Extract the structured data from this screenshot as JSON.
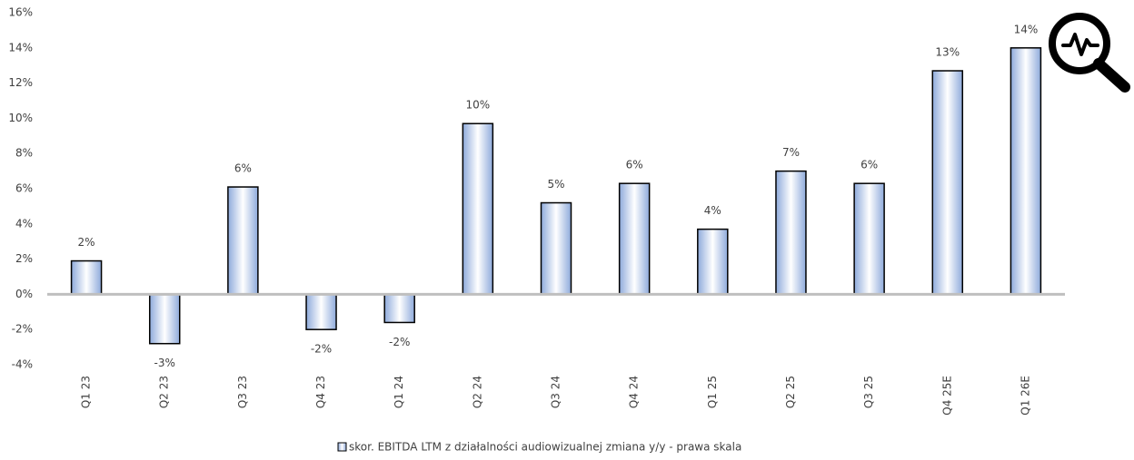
{
  "chart_data": {
    "type": "bar",
    "categories": [
      "Q1 23",
      "Q2 23",
      "Q3 23",
      "Q4 23",
      "Q1 24",
      "Q2 24",
      "Q3 24",
      "Q4 24",
      "Q1 25",
      "Q2 25",
      "Q3 25",
      "Q4 25E",
      "Q1 26E"
    ],
    "series": [
      {
        "name": "skor. EBITDA LTM z działalności audiowizualnej zmiana y/y - prawa skala",
        "color": "#8eaadb",
        "values": [
          1.9,
          -2.8,
          6.1,
          -2.0,
          -1.6,
          9.7,
          5.2,
          6.3,
          3.7,
          7.0,
          6.3,
          12.7,
          14.0
        ],
        "value_labels": [
          "2%",
          "-3%",
          "6%",
          "-2%",
          "-2%",
          "10%",
          "5%",
          "6%",
          "4%",
          "7%",
          "6%",
          "13%",
          "14%"
        ]
      }
    ],
    "ylim": [
      -4,
      16
    ],
    "yticks": [
      {
        "value": -4,
        "label": "-4%"
      },
      {
        "value": -2,
        "label": "-2%"
      },
      {
        "value": 0,
        "label": "0%"
      },
      {
        "value": 2,
        "label": "2%"
      },
      {
        "value": 4,
        "label": "4%"
      },
      {
        "value": 6,
        "label": "6%"
      },
      {
        "value": 8,
        "label": "8%"
      },
      {
        "value": 10,
        "label": "10%"
      },
      {
        "value": 12,
        "label": "12%"
      },
      {
        "value": 14,
        "label": "14%"
      },
      {
        "value": 16,
        "label": "16%"
      }
    ],
    "grid": false,
    "legend": "bottom"
  }
}
